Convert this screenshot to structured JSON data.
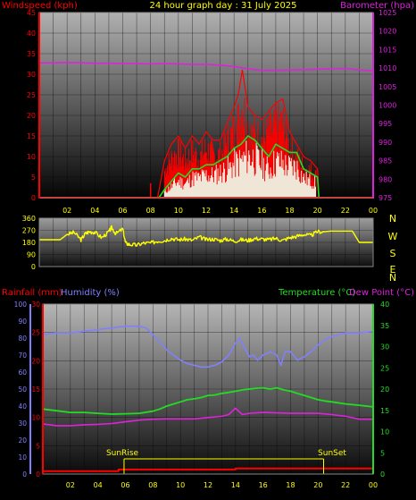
{
  "header": {
    "left": "Windspeed (kph)",
    "center": "24 hour graph day : 31 July 2025",
    "right": "Barometer (hpa)"
  },
  "colors": {
    "wind_gust": "#ff0000",
    "wind_avg": "#22dd22",
    "wind_white": "#eeffee",
    "baro": "#dd22dd",
    "dir": "#ffff00",
    "rain": "#ff0000",
    "humidity": "#8080ff",
    "temp": "#22dd22",
    "dew": "#dd22dd",
    "axis_left": "#ff0000",
    "axis_right": "#dd22dd",
    "hum_axis": "#8080ff",
    "temp_axis": "#22dd22",
    "sun": "#ffff00",
    "grid": "#000000"
  },
  "wind_panel": {
    "left_ticks": [
      "0",
      "5",
      "10",
      "15",
      "20",
      "25",
      "30",
      "35",
      "40",
      "45"
    ],
    "right_ticks": [
      "975",
      "980",
      "985",
      "990",
      "995",
      "1000",
      "1005",
      "1010",
      "1015",
      "1020",
      "1025"
    ],
    "x_ticks": [
      "02",
      "04",
      "06",
      "08",
      "10",
      "12",
      "14",
      "16",
      "18",
      "20",
      "22",
      "00"
    ]
  },
  "dir_panel": {
    "left_ticks": [
      "0",
      "90",
      "180",
      "270",
      "360"
    ],
    "right_labels": [
      "N",
      "W",
      "S",
      "E",
      "N"
    ]
  },
  "bottom_panel": {
    "rain_label": "Rainfall (mm)",
    "hum_label": "Humidity (%)",
    "temp_label": "Temperature (°C)",
    "dew_label": "Dew Point (°C)",
    "hum_ticks": [
      "0",
      "10",
      "20",
      "30",
      "40",
      "50",
      "60",
      "70",
      "80",
      "90",
      "100"
    ],
    "rain_ticks": [
      "0",
      "5",
      "10",
      "15",
      "20",
      "25",
      "30"
    ],
    "temp_ticks": [
      "0",
      "5",
      "10",
      "15",
      "20",
      "25",
      "30",
      "35",
      "40"
    ],
    "x_ticks": [
      "02",
      "04",
      "06",
      "08",
      "10",
      "12",
      "14",
      "16",
      "18",
      "20",
      "22",
      "00"
    ],
    "sunrise": "SunRise",
    "sunset": "SunSet"
  },
  "chart_data": [
    {
      "type": "line",
      "title": "24 hour graph day : 31 July 2025",
      "x_range": [
        0,
        24
      ],
      "ylabel": "Windspeed (kph)",
      "ylim": [
        0,
        45
      ],
      "y2label": "Barometer (hpa)",
      "y2lim": [
        975,
        1025
      ],
      "series": [
        {
          "name": "Windspeed (kph)",
          "axis": "left",
          "x": [
            0,
            8,
            8.5,
            9,
            9.5,
            10,
            10.5,
            11,
            11.5,
            12,
            12.5,
            13,
            13.5,
            14,
            14.3,
            14.6,
            15,
            15.5,
            16,
            16.5,
            17,
            17.5,
            18,
            18.5,
            19,
            19.5,
            20,
            20.1,
            24
          ],
          "y": [
            0,
            0,
            0,
            9,
            13,
            15,
            12,
            15,
            13,
            16,
            14,
            14,
            18,
            22,
            25,
            31,
            22,
            20,
            19,
            21,
            23,
            24,
            16,
            13,
            10,
            9,
            7,
            0,
            0
          ]
        },
        {
          "name": "",
          "axis": "left",
          "x": [
            0,
            8.6,
            9,
            9.5,
            10,
            10.5,
            11,
            11.5,
            12,
            12.5,
            13,
            13.5,
            14,
            14.5,
            15,
            15.5,
            16,
            16.5,
            17,
            17.5,
            18,
            18.5,
            19,
            19.5,
            20,
            20.1,
            24
          ],
          "y": [
            0,
            0,
            2,
            4,
            6,
            5,
            7,
            7,
            8,
            8,
            9,
            10,
            12,
            13,
            15,
            14,
            12,
            10,
            13,
            12,
            11,
            11,
            7,
            6,
            5,
            0,
            0
          ]
        },
        {
          "name": "Barometer (hpa)",
          "axis": "right",
          "x": [
            0,
            1,
            2,
            3,
            4,
            5,
            6,
            7,
            8,
            9,
            10,
            11,
            12,
            13,
            14,
            15,
            16,
            17,
            18,
            19,
            20,
            21,
            22,
            23,
            24
          ],
          "y": [
            1011.4,
            1011.4,
            1011.5,
            1011.4,
            1011.3,
            1011.3,
            1011.2,
            1011.2,
            1011.1,
            1011.2,
            1011.1,
            1011.0,
            1011.0,
            1010.8,
            1010.4,
            1009.8,
            1009.4,
            1009.4,
            1009.5,
            1009.6,
            1009.7,
            1009.8,
            1009.9,
            1009.5,
            1009.3
          ]
        }
      ]
    },
    {
      "type": "line",
      "x_range": [
        0,
        24
      ],
      "ylim": [
        0,
        360
      ],
      "series": [
        {
          "name": "",
          "x": [
            0,
            1.5,
            2,
            2.5,
            3,
            3.3,
            3.6,
            4,
            4.5,
            5,
            5.2,
            5.5,
            6,
            6.2,
            6.5,
            7,
            7.5,
            8,
            8.5,
            9,
            9.5,
            10,
            10.5,
            11,
            11.5,
            12,
            12.5,
            13,
            13.5,
            14,
            14.5,
            15,
            15.5,
            16,
            16.5,
            17,
            17.5,
            18,
            18.5,
            19,
            19.5,
            20,
            20.5,
            21,
            21.5,
            22,
            22.5,
            23,
            23.5,
            24
          ],
          "y": [
            200,
            200,
            240,
            255,
            200,
            245,
            260,
            255,
            215,
            260,
            290,
            245,
            280,
            175,
            165,
            160,
            175,
            175,
            190,
            195,
            210,
            200,
            205,
            195,
            220,
            200,
            205,
            195,
            205,
            190,
            200,
            195,
            210,
            205,
            200,
            210,
            195,
            215,
            225,
            240,
            230,
            260,
            260,
            265,
            265,
            265,
            265,
            180,
            180,
            180
          ]
        }
      ]
    },
    {
      "type": "line",
      "x_range": [
        0,
        24
      ],
      "series": [
        {
          "name": "Humidity (%)",
          "axis": "humidity",
          "ylim": [
            0,
            100
          ],
          "x": [
            0,
            1,
            2,
            3,
            4,
            5,
            6,
            7,
            7.5,
            8,
            8.5,
            9,
            9.5,
            10,
            10.5,
            11,
            11.5,
            12,
            12.5,
            13,
            13.5,
            14,
            14.3,
            14.6,
            15,
            15.3,
            15.6,
            16,
            16.5,
            17,
            17.3,
            17.6,
            18,
            18.5,
            19,
            19.5,
            20,
            20.5,
            21,
            22,
            23,
            24
          ],
          "y": [
            82,
            83,
            83,
            84,
            85,
            86,
            87,
            87,
            86,
            82,
            78,
            73,
            70,
            67,
            65,
            64,
            63,
            63,
            64,
            66,
            70,
            77,
            80,
            75,
            69,
            70,
            67,
            70,
            72,
            70,
            64,
            72,
            72,
            67,
            69,
            72,
            76,
            79,
            81,
            83,
            83,
            84
          ]
        },
        {
          "name": "Temperature (°C)",
          "axis": "temp",
          "ylim": [
            0,
            40
          ],
          "x": [
            0,
            1,
            2,
            3,
            4,
            5,
            6,
            7,
            8,
            8.5,
            9,
            9.5,
            10,
            10.5,
            11,
            11.5,
            12,
            12.5,
            13,
            13.5,
            14,
            14.5,
            15,
            15.5,
            16,
            16.5,
            17,
            17.5,
            18,
            18.5,
            19,
            19.5,
            20,
            20.5,
            21,
            22,
            23,
            24
          ],
          "y": [
            15.3,
            14.9,
            14.5,
            14.5,
            14.3,
            14.1,
            14.2,
            14.3,
            14.8,
            15.3,
            16.0,
            16.5,
            17.0,
            17.5,
            17.7,
            18.0,
            18.5,
            18.6,
            19.0,
            19.2,
            19.5,
            19.8,
            20.0,
            20.2,
            20.3,
            20.0,
            20.3,
            19.8,
            19.5,
            19.0,
            18.5,
            18.0,
            17.5,
            17.2,
            17.0,
            16.5,
            16.2,
            15.8
          ]
        },
        {
          "name": "Dew Point (°C)",
          "axis": "temp",
          "ylim": [
            0,
            40
          ],
          "x": [
            0,
            1,
            2,
            3,
            4,
            5,
            6,
            7,
            8,
            9,
            10,
            11,
            12,
            13,
            13.5,
            14,
            14.5,
            15,
            16,
            17,
            18,
            19,
            20,
            21,
            22,
            23,
            24
          ],
          "y": [
            11.8,
            11.4,
            11.4,
            11.6,
            11.7,
            11.9,
            12.3,
            12.7,
            12.9,
            13.0,
            13.0,
            13.0,
            13.3,
            13.6,
            14.0,
            15.5,
            14.0,
            14.3,
            14.5,
            14.4,
            14.3,
            14.3,
            14.3,
            14.0,
            13.6,
            12.9,
            12.9
          ]
        },
        {
          "name": "Rainfall (mm)",
          "axis": "rain",
          "ylim": [
            0,
            30
          ],
          "x": [
            0,
            5.5,
            5.5,
            14,
            14,
            24
          ],
          "y": [
            0.5,
            0.5,
            0.8,
            0.8,
            1.0,
            1.0
          ]
        }
      ],
      "markers": {
        "sunrise_x": 5.9,
        "sunset_x": 20.4
      }
    }
  ]
}
